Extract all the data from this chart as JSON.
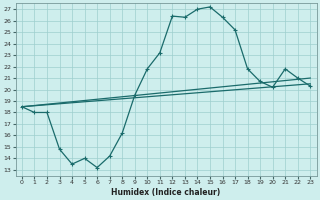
{
  "xlabel": "Humidex (Indice chaleur)",
  "background_color": "#ceeeed",
  "grid_color": "#9ecfce",
  "line_color": "#1a6b6b",
  "xlim": [
    -0.5,
    23.5
  ],
  "ylim": [
    12.5,
    27.5
  ],
  "xticks": [
    0,
    1,
    2,
    3,
    4,
    5,
    6,
    7,
    8,
    9,
    10,
    11,
    12,
    13,
    14,
    15,
    16,
    17,
    18,
    19,
    20,
    21,
    22,
    23
  ],
  "yticks": [
    13,
    14,
    15,
    16,
    17,
    18,
    19,
    20,
    21,
    22,
    23,
    24,
    25,
    26,
    27
  ],
  "curve_main": {
    "x": [
      0,
      1,
      2,
      3,
      4,
      5,
      6,
      7,
      8,
      9,
      10,
      11,
      12,
      13,
      14,
      15,
      16,
      17,
      18,
      19,
      20,
      21,
      22,
      23
    ],
    "y": [
      18.5,
      18.0,
      18.0,
      14.8,
      13.5,
      14.0,
      13.2,
      14.2,
      16.2,
      19.5,
      21.8,
      23.2,
      26.4,
      26.3,
      27.0,
      27.2,
      26.3,
      25.2,
      21.8,
      20.7,
      20.2,
      21.8,
      21.0,
      20.3
    ]
  },
  "curve_upper": {
    "x": [
      0,
      23
    ],
    "y": [
      18.5,
      21.0
    ]
  },
  "curve_lower": {
    "x": [
      0,
      23
    ],
    "y": [
      18.5,
      20.5
    ]
  }
}
